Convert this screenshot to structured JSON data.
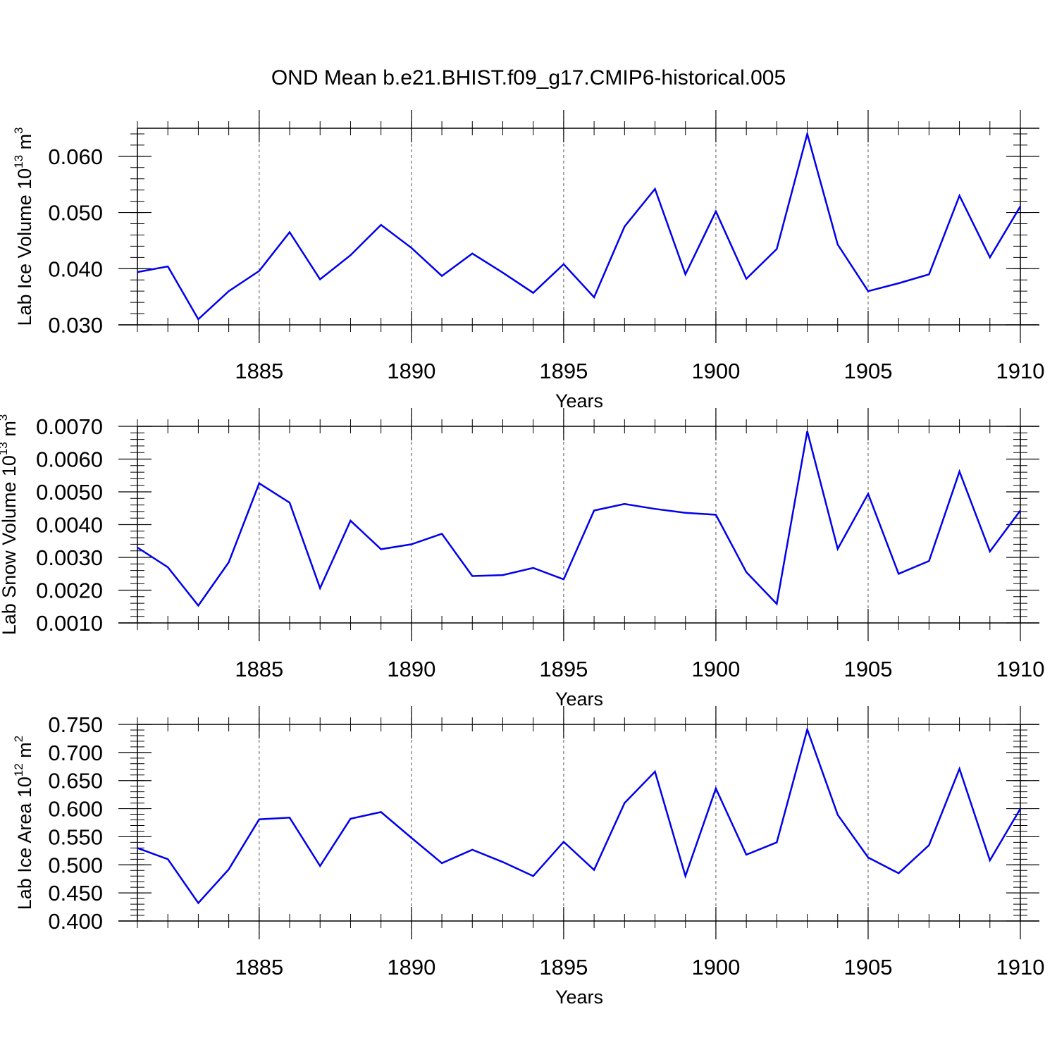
{
  "title": "OND Mean b.e21.BHIST.f09_g17.CMIP6-historical.005",
  "colors": {
    "line": "#0000ee",
    "axis": "#000000",
    "grid": "#555555"
  },
  "chart_data": [
    {
      "type": "line",
      "ylabel": "Lab Ice Volume 10",
      "ylabel_exp": "13",
      "ylabel_unit": "m",
      "ylabel_unit_exp": "3",
      "xlabel": "Years",
      "xlim": [
        1881,
        1910
      ],
      "ylim": [
        0.03,
        0.065
      ],
      "yticks": [
        0.03,
        0.04,
        0.05,
        0.06
      ],
      "ytick_labels": [
        "0.030",
        "0.040",
        "0.050",
        "0.060"
      ],
      "xticks": [
        1885,
        1890,
        1895,
        1900,
        1905,
        1910
      ],
      "xtick_labels": [
        "1885",
        "1890",
        "1895",
        "1900",
        "1905",
        "1910"
      ],
      "grid_x": [
        1885,
        1890,
        1895,
        1900,
        1905
      ],
      "x": [
        1881,
        1882,
        1883,
        1884,
        1885,
        1886,
        1887,
        1888,
        1889,
        1890,
        1891,
        1892,
        1893,
        1894,
        1895,
        1896,
        1897,
        1898,
        1899,
        1900,
        1901,
        1902,
        1903,
        1904,
        1905,
        1906,
        1907,
        1908,
        1909,
        1910
      ],
      "values": [
        0.0394,
        0.0404,
        0.031,
        0.036,
        0.0396,
        0.0465,
        0.0381,
        0.0424,
        0.0478,
        0.0437,
        0.0387,
        0.0427,
        0.0393,
        0.0357,
        0.0408,
        0.0349,
        0.0475,
        0.0542,
        0.039,
        0.0502,
        0.0382,
        0.0435,
        0.064,
        0.0443,
        0.036,
        0.0374,
        0.039,
        0.053,
        0.042,
        0.0511
      ]
    },
    {
      "type": "line",
      "ylabel": "Lab Snow Volume 10",
      "ylabel_exp": "13",
      "ylabel_unit": "m",
      "ylabel_unit_exp": "3",
      "xlabel": "Years",
      "xlim": [
        1881,
        1910
      ],
      "ylim": [
        0.001,
        0.007
      ],
      "yticks": [
        0.001,
        0.002,
        0.003,
        0.004,
        0.005,
        0.006,
        0.007
      ],
      "ytick_labels": [
        "0.0010",
        "0.0020",
        "0.0030",
        "0.0040",
        "0.0050",
        "0.0060",
        "0.0070"
      ],
      "xticks": [
        1885,
        1890,
        1895,
        1900,
        1905,
        1910
      ],
      "xtick_labels": [
        "1885",
        "1890",
        "1895",
        "1900",
        "1905",
        "1910"
      ],
      "grid_x": [
        1885,
        1890,
        1895,
        1900,
        1905
      ],
      "x": [
        1881,
        1882,
        1883,
        1884,
        1885,
        1886,
        1887,
        1888,
        1889,
        1890,
        1891,
        1892,
        1893,
        1894,
        1895,
        1896,
        1897,
        1898,
        1899,
        1900,
        1901,
        1902,
        1903,
        1904,
        1905,
        1906,
        1907,
        1908,
        1909,
        1910
      ],
      "values": [
        0.0033,
        0.0027,
        0.00153,
        0.00285,
        0.00526,
        0.00467,
        0.00206,
        0.00412,
        0.00325,
        0.0034,
        0.00372,
        0.00243,
        0.00246,
        0.00268,
        0.00233,
        0.00443,
        0.00463,
        0.00448,
        0.00436,
        0.0043,
        0.00255,
        0.00158,
        0.00685,
        0.00326,
        0.00494,
        0.0025,
        0.00289,
        0.00562,
        0.00318,
        0.00443
      ]
    },
    {
      "type": "line",
      "ylabel": "Lab Ice Area 10",
      "ylabel_exp": "12",
      "ylabel_unit": "m",
      "ylabel_unit_exp": "2",
      "xlabel": "Years",
      "xlim": [
        1881,
        1910
      ],
      "ylim": [
        0.4,
        0.75
      ],
      "yticks": [
        0.4,
        0.45,
        0.5,
        0.55,
        0.6,
        0.65,
        0.7,
        0.75
      ],
      "ytick_labels": [
        "0.400",
        "0.450",
        "0.500",
        "0.550",
        "0.600",
        "0.650",
        "0.700",
        "0.750"
      ],
      "xticks": [
        1885,
        1890,
        1895,
        1900,
        1905,
        1910
      ],
      "xtick_labels": [
        "1885",
        "1890",
        "1895",
        "1900",
        "1905",
        "1910"
      ],
      "grid_x": [
        1885,
        1890,
        1895,
        1900,
        1905
      ],
      "x": [
        1881,
        1882,
        1883,
        1884,
        1885,
        1886,
        1887,
        1888,
        1889,
        1890,
        1891,
        1892,
        1893,
        1894,
        1895,
        1896,
        1897,
        1898,
        1899,
        1900,
        1901,
        1902,
        1903,
        1904,
        1905,
        1906,
        1907,
        1908,
        1909,
        1910
      ],
      "values": [
        0.53,
        0.51,
        0.432,
        0.492,
        0.581,
        0.584,
        0.498,
        0.582,
        0.594,
        0.548,
        0.503,
        0.527,
        0.505,
        0.48,
        0.541,
        0.491,
        0.61,
        0.666,
        0.48,
        0.636,
        0.518,
        0.54,
        0.741,
        0.589,
        0.513,
        0.485,
        0.535,
        0.671,
        0.508,
        0.6
      ]
    }
  ]
}
